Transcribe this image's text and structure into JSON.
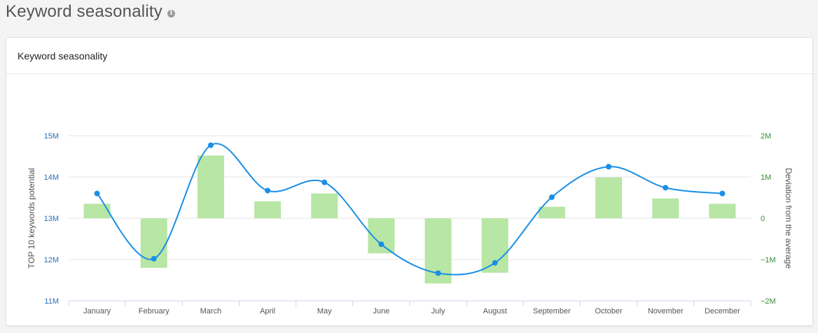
{
  "page": {
    "title": "Keyword seasonality",
    "info_icon": "info-icon"
  },
  "card": {
    "title": "Keyword seasonality"
  },
  "colors": {
    "line": "#1a8fe6",
    "bar": "#b7e6a5",
    "left_axis": "#2a6fb5",
    "right_axis": "#3a8a3a"
  },
  "chart_data": {
    "type": "bar+line",
    "categories": [
      "January",
      "February",
      "March",
      "April",
      "May",
      "June",
      "July",
      "August",
      "September",
      "October",
      "November",
      "December"
    ],
    "series": [
      {
        "name": "TOP 10 keywords potential",
        "type": "line",
        "axis": "left",
        "values": [
          13.6,
          12.02,
          14.77,
          13.67,
          13.87,
          12.37,
          11.67,
          11.92,
          13.51,
          14.25,
          13.74,
          13.6
        ]
      },
      {
        "name": "Deviation from the average",
        "type": "bar",
        "axis": "right",
        "values": [
          0.35,
          -1.2,
          1.52,
          0.41,
          0.6,
          -0.85,
          -1.58,
          -1.32,
          0.28,
          0.99,
          0.48,
          0.35
        ]
      }
    ],
    "y_left": {
      "label": "TOP 10 keywords potential",
      "ylim": [
        11,
        15
      ],
      "ticks": [
        {
          "v": 15,
          "t": "15M"
        },
        {
          "v": 14,
          "t": "14M"
        },
        {
          "v": 13,
          "t": "13M"
        },
        {
          "v": 12,
          "t": "12M"
        },
        {
          "v": 11,
          "t": "11M"
        }
      ]
    },
    "y_right": {
      "label": "Deviation from the average",
      "ylim": [
        -2,
        2
      ],
      "ticks": [
        {
          "v": 2,
          "t": "2M"
        },
        {
          "v": 1,
          "t": "1M"
        },
        {
          "v": 0,
          "t": "0"
        },
        {
          "v": -1,
          "t": "−1M"
        },
        {
          "v": -2,
          "t": "−2M"
        }
      ]
    },
    "grid": true,
    "legend_position": "bottom-center"
  }
}
